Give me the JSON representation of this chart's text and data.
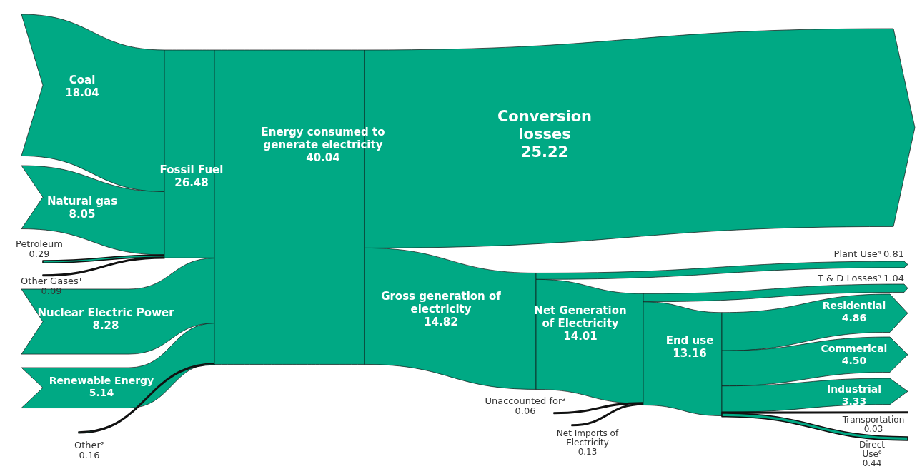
{
  "chart_data": {
    "type": "other",
    "color": "#00a984",
    "categories": [
      "Coal",
      "Natural gas",
      "Petroleum",
      "Other Gases¹",
      "Nuclear Electric Power",
      "Renewable Energy",
      "Other²",
      "Fossil Fuel",
      "Energy consumed to generate electricity",
      "Conversion losses",
      "Gross generation of electricity",
      "Plant Use⁴",
      "Net Generation of Electricity",
      "T & D Losses⁵",
      "Unaccounted for³",
      "Net Imports of Electricity",
      "End use",
      "Residential",
      "Commerical",
      "Industrial",
      "Transportation",
      "Direct Use⁶"
    ],
    "values": [
      18.04,
      8.05,
      0.29,
      0.09,
      8.28,
      5.14,
      0.16,
      26.48,
      40.04,
      25.22,
      14.82,
      0.81,
      14.01,
      1.04,
      0.06,
      0.13,
      13.16,
      4.86,
      4.5,
      3.33,
      0.03,
      0.44
    ],
    "value_labels": [
      "18.04",
      "8.05",
      "0.29",
      "0.09",
      "8.28",
      "5.14",
      "0.16",
      "26.48",
      "40.04",
      "25.22",
      "14.82",
      "0.81",
      "14.01",
      "1.04",
      "0.06",
      "0.13",
      "13.16",
      "4.86",
      "4.50",
      "3.33",
      "0.03",
      "0.44"
    ]
  }
}
